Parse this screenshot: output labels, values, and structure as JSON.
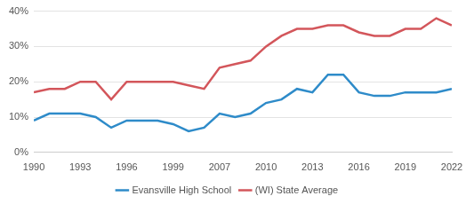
{
  "chart_data": {
    "type": "line",
    "categories": [
      "1990",
      null,
      null,
      "1993",
      null,
      null,
      "1996",
      null,
      null,
      "1999",
      null,
      null,
      "2007",
      null,
      null,
      "2010",
      null,
      null,
      "2013",
      null,
      null,
      "2016",
      null,
      null,
      "2019",
      null,
      null,
      "2022"
    ],
    "series": [
      {
        "name": "Evansville High School",
        "color": "#2e8bc9",
        "values": [
          9,
          11,
          11,
          11,
          10,
          7,
          9,
          9,
          9,
          8,
          6,
          7,
          11,
          10,
          11,
          14,
          15,
          18,
          17,
          22,
          22,
          17,
          16,
          16,
          17,
          17,
          17,
          18
        ]
      },
      {
        "name": "(WI) State Average",
        "color": "#d3565b",
        "values": [
          17,
          18,
          18,
          20,
          20,
          15,
          20,
          20,
          20,
          20,
          19,
          18,
          24,
          25,
          26,
          30,
          33,
          35,
          35,
          36,
          36,
          34,
          33,
          33,
          35,
          35,
          38,
          36
        ]
      }
    ],
    "ylim": [
      0,
      40
    ],
    "yticks": [
      {
        "value": 0,
        "label": "0%"
      },
      {
        "value": 10,
        "label": "10%"
      },
      {
        "value": 20,
        "label": "20%"
      },
      {
        "value": 30,
        "label": "30%"
      },
      {
        "value": 40,
        "label": "40%"
      }
    ],
    "grid": true,
    "legend": "bottom"
  }
}
